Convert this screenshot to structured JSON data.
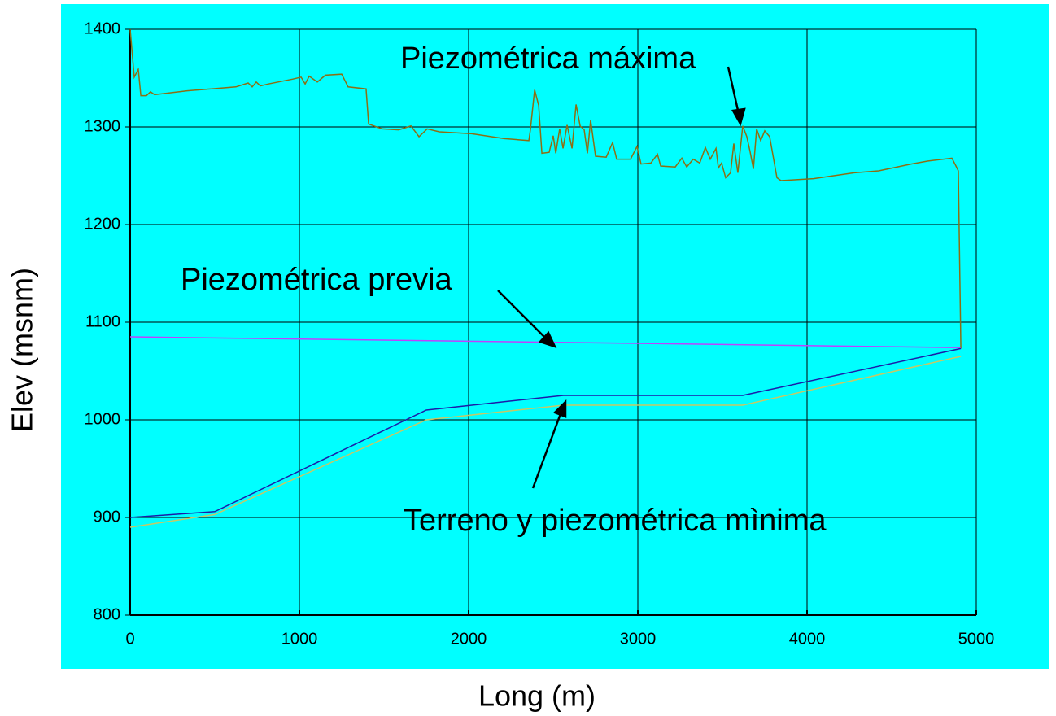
{
  "chart_data": {
    "type": "line",
    "x_label": "Long (m)",
    "y_label": "Elev (msnm)",
    "xlim": [
      0,
      5000
    ],
    "ylim": [
      800,
      1400
    ],
    "xticks": [
      0,
      1000,
      2000,
      3000,
      4000,
      5000
    ],
    "yticks": [
      800,
      900,
      1000,
      1100,
      1200,
      1300,
      1400
    ],
    "grid": true,
    "background": "#00ffff",
    "annotations": [
      "Piezométrica máxima",
      "Piezométrica previa",
      "Terreno y piezométrica mìnima"
    ],
    "series": [
      {
        "color": "#8c6e14",
        "x": [
          0,
          24,
          48,
          63,
          96,
          120,
          144,
          240,
          337,
          481,
          625,
          697,
          721,
          745,
          769,
          817,
          962,
          1010,
          1034,
          1058,
          1106,
          1154,
          1250,
          1288,
          1394,
          1409,
          1490,
          1587,
          1659,
          1707,
          1755,
          1827,
          2019,
          2212,
          2356,
          2365,
          2390,
          2414,
          2433,
          2476,
          2500,
          2515,
          2538,
          2558,
          2582,
          2611,
          2635,
          2659,
          2683,
          2702,
          2721,
          2750,
          2813,
          2851,
          2875,
          2957,
          2995,
          3019,
          3077,
          3116,
          3135,
          3221,
          3260,
          3289,
          3327,
          3366,
          3399,
          3428,
          3462,
          3476,
          3495,
          3519,
          3548,
          3567,
          3591,
          3620,
          3644,
          3663,
          3683,
          3702,
          3726,
          3750,
          3779,
          3822,
          3846,
          4038,
          4279,
          4423,
          4615,
          4712,
          4856,
          4880,
          4894,
          4909
        ],
        "values": [
          1400,
          1351,
          1359,
          1332,
          1332,
          1336,
          1333,
          1335,
          1337,
          1339,
          1341,
          1345,
          1341,
          1346,
          1342,
          1344,
          1349,
          1351,
          1344,
          1352,
          1346,
          1353,
          1354,
          1341,
          1339,
          1303,
          1298,
          1297,
          1301,
          1290,
          1298,
          1295,
          1293,
          1288,
          1286,
          1297,
          1338,
          1322,
          1273,
          1274,
          1291,
          1273,
          1298,
          1278,
          1302,
          1278,
          1323,
          1301,
          1297,
          1273,
          1307,
          1270,
          1269,
          1284,
          1267,
          1267,
          1280,
          1262,
          1263,
          1272,
          1260,
          1259,
          1268,
          1259,
          1267,
          1263,
          1279,
          1267,
          1278,
          1258,
          1263,
          1248,
          1253,
          1283,
          1253,
          1301,
          1290,
          1275,
          1257,
          1298,
          1286,
          1296,
          1290,
          1248,
          1245,
          1247,
          1253,
          1255,
          1262,
          1265,
          1268,
          1260,
          1255,
          1073
        ]
      },
      {
        "color": "#c040ff",
        "x": [
          0,
          4909
        ],
        "values": [
          1085,
          1074
        ]
      },
      {
        "color": "#1c1ca8",
        "x": [
          0,
          500,
          1750,
          2560,
          3620,
          4909
        ],
        "values": [
          900,
          906,
          1010,
          1025,
          1025,
          1073
        ]
      },
      {
        "color": "#c8c864",
        "x": [
          0,
          500,
          1750,
          2560,
          3620,
          4909
        ],
        "values": [
          890,
          903,
          1000,
          1015,
          1015,
          1065
        ]
      }
    ]
  }
}
